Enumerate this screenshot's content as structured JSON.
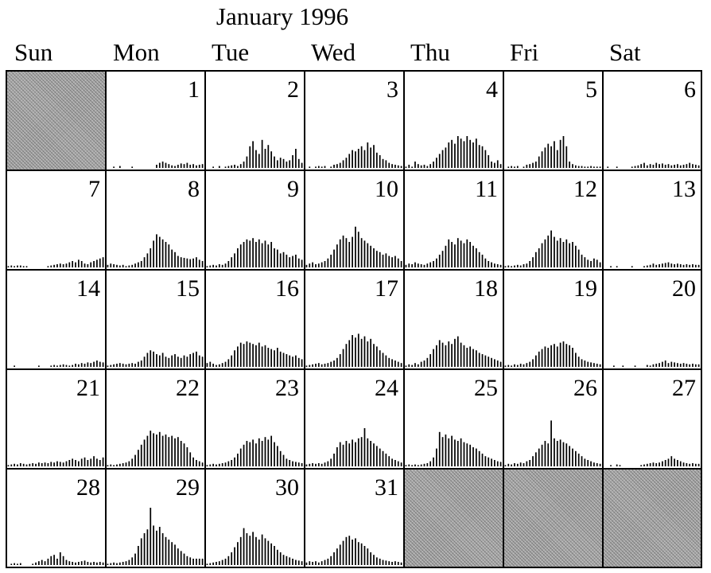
{
  "calendar": {
    "title": "January 1996",
    "weekdays": [
      "Sun",
      "Mon",
      "Tue",
      "Wed",
      "Thu",
      "Fri",
      "Sat"
    ]
  },
  "chart_data": {
    "type": "bar",
    "title": "January 1996",
    "layout": "monthly calendar, one small bar histogram per day",
    "grid": true,
    "columns": [
      "Sun",
      "Mon",
      "Tue",
      "Wed",
      "Thu",
      "Fri",
      "Sat"
    ],
    "bar_color": "#000000",
    "empty_cell_color": "#a8a8a8",
    "ylim": [
      0,
      1
    ],
    "note_values": "relative bar heights (fraction of panel height), approximate",
    "days": [
      {
        "day": 1,
        "values": [
          0,
          0,
          0.02,
          0,
          0.03,
          0,
          0,
          0,
          0.02,
          0,
          0,
          0,
          0,
          0,
          0,
          0,
          0.05,
          0.08,
          0.1,
          0.08,
          0.06,
          0.04,
          0.03,
          0.05,
          0.07,
          0.06,
          0.08,
          0.05,
          0.06,
          0.04,
          0.05,
          0.06
        ]
      },
      {
        "day": 2,
        "values": [
          0,
          0,
          0.02,
          0,
          0.03,
          0,
          0.02,
          0.03,
          0.04,
          0.05,
          0.03,
          0.06,
          0.1,
          0.18,
          0.34,
          0.42,
          0.28,
          0.22,
          0.44,
          0.3,
          0.36,
          0.26,
          0.18,
          0.12,
          0.16,
          0.14,
          0.1,
          0.12,
          0.2,
          0.3,
          0.14,
          0.08
        ]
      },
      {
        "day": 3,
        "values": [
          0,
          0.02,
          0,
          0.02,
          0.03,
          0.02,
          0.03,
          0,
          0.02,
          0.05,
          0.06,
          0.08,
          0.12,
          0.16,
          0.22,
          0.28,
          0.26,
          0.3,
          0.34,
          0.28,
          0.4,
          0.32,
          0.36,
          0.24,
          0.2,
          0.14,
          0.12,
          0.08,
          0.06,
          0.05,
          0.04,
          0.03
        ]
      },
      {
        "day": 4,
        "values": [
          0.02,
          0.05,
          0.02,
          0.1,
          0.06,
          0.04,
          0.05,
          0.03,
          0.06,
          0.1,
          0.16,
          0.22,
          0.28,
          0.32,
          0.4,
          0.44,
          0.38,
          0.5,
          0.46,
          0.42,
          0.5,
          0.44,
          0.4,
          0.46,
          0.36,
          0.34,
          0.28,
          0.2,
          0.1,
          0.08,
          0.12,
          0.06
        ]
      },
      {
        "day": 5,
        "values": [
          0,
          0.02,
          0.03,
          0.02,
          0.03,
          0,
          0.02,
          0.05,
          0.06,
          0.08,
          0.1,
          0.18,
          0.26,
          0.32,
          0.38,
          0.34,
          0.42,
          0.28,
          0.44,
          0.5,
          0.34,
          0.1,
          0.06,
          0.04,
          0.03,
          0.03,
          0.02,
          0.02,
          0.03,
          0.02,
          0.02,
          0.02
        ]
      },
      {
        "day": 6,
        "values": [
          0,
          0.02,
          0,
          0,
          0.02,
          0,
          0,
          0,
          0,
          0.02,
          0.03,
          0.04,
          0.06,
          0.08,
          0.04,
          0.06,
          0.05,
          0.08,
          0.06,
          0.07,
          0.05,
          0.06,
          0.04,
          0.05,
          0.06,
          0.04,
          0.05,
          0.06,
          0.08,
          0.06,
          0.05,
          0.04
        ]
      },
      {
        "day": 7,
        "values": [
          0.02,
          0.03,
          0.02,
          0.03,
          0.03,
          0.02,
          0.02,
          0,
          0,
          0,
          0,
          0,
          0,
          0.02,
          0.03,
          0.04,
          0.05,
          0.06,
          0.05,
          0.06,
          0.08,
          0.1,
          0.08,
          0.12,
          0.1,
          0.06,
          0.05,
          0.08,
          0.1,
          0.12,
          0.14,
          0.16
        ]
      },
      {
        "day": 8,
        "values": [
          0.04,
          0.06,
          0.05,
          0.04,
          0.03,
          0.04,
          0.02,
          0.03,
          0.04,
          0.06,
          0.08,
          0.1,
          0.16,
          0.22,
          0.3,
          0.42,
          0.52,
          0.48,
          0.44,
          0.4,
          0.36,
          0.28,
          0.24,
          0.18,
          0.16,
          0.15,
          0.14,
          0.13,
          0.14,
          0.16,
          0.12,
          0.1
        ]
      },
      {
        "day": 9,
        "values": [
          0.02,
          0.03,
          0.04,
          0.03,
          0.05,
          0.04,
          0.06,
          0.1,
          0.16,
          0.22,
          0.3,
          0.36,
          0.4,
          0.44,
          0.42,
          0.46,
          0.4,
          0.44,
          0.38,
          0.42,
          0.36,
          0.4,
          0.3,
          0.28,
          0.22,
          0.24,
          0.2,
          0.16,
          0.18,
          0.2,
          0.14,
          0.12
        ]
      },
      {
        "day": 10,
        "values": [
          0.04,
          0.06,
          0.08,
          0.05,
          0.06,
          0.08,
          0.1,
          0.14,
          0.2,
          0.28,
          0.36,
          0.44,
          0.5,
          0.46,
          0.4,
          0.48,
          0.64,
          0.56,
          0.46,
          0.42,
          0.38,
          0.34,
          0.3,
          0.26,
          0.24,
          0.2,
          0.22,
          0.18,
          0.16,
          0.18,
          0.14,
          0.1
        ]
      },
      {
        "day": 11,
        "values": [
          0.04,
          0.06,
          0.05,
          0.08,
          0.06,
          0.05,
          0.04,
          0.06,
          0.08,
          0.1,
          0.14,
          0.2,
          0.26,
          0.34,
          0.44,
          0.4,
          0.36,
          0.46,
          0.42,
          0.38,
          0.44,
          0.4,
          0.34,
          0.3,
          0.24,
          0.2,
          0.14,
          0.1,
          0.08,
          0.06,
          0.05,
          0.04
        ]
      },
      {
        "day": 12,
        "values": [
          0.02,
          0.03,
          0.02,
          0.03,
          0.04,
          0.03,
          0.05,
          0.06,
          0.1,
          0.16,
          0.24,
          0.3,
          0.38,
          0.44,
          0.5,
          0.58,
          0.48,
          0.42,
          0.46,
          0.4,
          0.44,
          0.38,
          0.4,
          0.34,
          0.28,
          0.2,
          0.16,
          0.12,
          0.1,
          0.14,
          0.12,
          0.08
        ]
      },
      {
        "day": 13,
        "values": [
          0,
          0,
          0.02,
          0,
          0.02,
          0,
          0,
          0,
          0,
          0.02,
          0,
          0,
          0,
          0.02,
          0.03,
          0.04,
          0.06,
          0.04,
          0.05,
          0.06,
          0.07,
          0.08,
          0.06,
          0.05,
          0.06,
          0.05,
          0.04,
          0.05,
          0.04,
          0.05,
          0.04,
          0.04
        ]
      },
      {
        "day": 14,
        "values": [
          0,
          0,
          0.02,
          0,
          0,
          0,
          0,
          0,
          0,
          0,
          0.02,
          0,
          0,
          0,
          0.02,
          0.03,
          0.02,
          0.03,
          0.04,
          0.03,
          0.02,
          0.03,
          0.05,
          0.04,
          0.06,
          0.05,
          0.07,
          0.06,
          0.08,
          0.1,
          0.08,
          0.07
        ]
      },
      {
        "day": 15,
        "values": [
          0.02,
          0.03,
          0.04,
          0.05,
          0.06,
          0.05,
          0.04,
          0.05,
          0.06,
          0.05,
          0.08,
          0.1,
          0.16,
          0.22,
          0.26,
          0.24,
          0.2,
          0.18,
          0.22,
          0.16,
          0.14,
          0.18,
          0.2,
          0.16,
          0.14,
          0.18,
          0.16,
          0.2,
          0.22,
          0.24,
          0.18,
          0.16
        ]
      },
      {
        "day": 16,
        "values": [
          0.06,
          0.08,
          0.05,
          0.03,
          0.04,
          0.06,
          0.08,
          0.12,
          0.18,
          0.26,
          0.32,
          0.38,
          0.36,
          0.4,
          0.38,
          0.36,
          0.34,
          0.38,
          0.32,
          0.34,
          0.3,
          0.28,
          0.26,
          0.3,
          0.24,
          0.22,
          0.2,
          0.18,
          0.16,
          0.18,
          0.14,
          0.12
        ]
      },
      {
        "day": 17,
        "values": [
          0.02,
          0.03,
          0.04,
          0.05,
          0.06,
          0.04,
          0.05,
          0.06,
          0.08,
          0.1,
          0.14,
          0.2,
          0.28,
          0.36,
          0.42,
          0.5,
          0.46,
          0.52,
          0.44,
          0.48,
          0.4,
          0.44,
          0.36,
          0.32,
          0.26,
          0.22,
          0.18,
          0.14,
          0.12,
          0.1,
          0.08,
          0.06
        ]
      },
      {
        "day": 18,
        "values": [
          0.02,
          0.04,
          0.03,
          0.06,
          0.04,
          0.08,
          0.1,
          0.14,
          0.2,
          0.28,
          0.34,
          0.42,
          0.38,
          0.34,
          0.4,
          0.36,
          0.44,
          0.48,
          0.38,
          0.34,
          0.3,
          0.32,
          0.28,
          0.26,
          0.22,
          0.2,
          0.18,
          0.16,
          0.14,
          0.12,
          0.1,
          0.08
        ]
      },
      {
        "day": 19,
        "values": [
          0.02,
          0.03,
          0.02,
          0.04,
          0.03,
          0.05,
          0.04,
          0.06,
          0.08,
          0.12,
          0.18,
          0.24,
          0.28,
          0.32,
          0.3,
          0.34,
          0.36,
          0.32,
          0.38,
          0.4,
          0.36,
          0.34,
          0.3,
          0.22,
          0.16,
          0.12,
          0.1,
          0.08,
          0.07,
          0.06,
          0.05,
          0.04
        ]
      },
      {
        "day": 20,
        "values": [
          0,
          0,
          0,
          0.02,
          0,
          0,
          0.02,
          0,
          0,
          0,
          0.02,
          0,
          0,
          0,
          0.03,
          0.02,
          0.04,
          0.05,
          0.06,
          0.08,
          0.1,
          0.06,
          0.08,
          0.07,
          0.06,
          0.05,
          0.06,
          0.05,
          0.04,
          0.05,
          0.04,
          0.04
        ]
      },
      {
        "day": 21,
        "values": [
          0.02,
          0.03,
          0.04,
          0.03,
          0.05,
          0.04,
          0.03,
          0.04,
          0.05,
          0.04,
          0.06,
          0.05,
          0.06,
          0.05,
          0.07,
          0.06,
          0.08,
          0.07,
          0.06,
          0.08,
          0.1,
          0.12,
          0.1,
          0.08,
          0.12,
          0.14,
          0.1,
          0.12,
          0.16,
          0.12,
          0.1,
          0.14
        ]
      },
      {
        "day": 22,
        "values": [
          0.02,
          0.03,
          0.02,
          0.03,
          0.04,
          0.05,
          0.06,
          0.08,
          0.12,
          0.18,
          0.26,
          0.34,
          0.42,
          0.48,
          0.56,
          0.52,
          0.5,
          0.54,
          0.48,
          0.5,
          0.46,
          0.48,
          0.44,
          0.46,
          0.4,
          0.36,
          0.3,
          0.22,
          0.14,
          0.1,
          0.08,
          0.06
        ]
      },
      {
        "day": 23,
        "values": [
          0.02,
          0.03,
          0.04,
          0.03,
          0.04,
          0.05,
          0.06,
          0.08,
          0.1,
          0.14,
          0.2,
          0.28,
          0.34,
          0.4,
          0.38,
          0.42,
          0.36,
          0.44,
          0.4,
          0.46,
          0.42,
          0.48,
          0.38,
          0.32,
          0.24,
          0.18,
          0.12,
          0.1,
          0.08,
          0.07,
          0.06,
          0.05
        ]
      },
      {
        "day": 24,
        "values": [
          0.03,
          0.04,
          0.05,
          0.04,
          0.05,
          0.04,
          0.06,
          0.08,
          0.12,
          0.2,
          0.3,
          0.38,
          0.34,
          0.4,
          0.36,
          0.42,
          0.38,
          0.44,
          0.46,
          0.6,
          0.44,
          0.4,
          0.36,
          0.32,
          0.28,
          0.24,
          0.2,
          0.16,
          0.12,
          0.1,
          0.08,
          0.06
        ]
      },
      {
        "day": 25,
        "values": [
          0.02,
          0.03,
          0.02,
          0.03,
          0.02,
          0.03,
          0.04,
          0.05,
          0.08,
          0.14,
          0.28,
          0.54,
          0.46,
          0.5,
          0.44,
          0.48,
          0.42,
          0.4,
          0.44,
          0.38,
          0.36,
          0.34,
          0.3,
          0.28,
          0.24,
          0.2,
          0.16,
          0.14,
          0.12,
          0.1,
          0.08,
          0.07
        ]
      },
      {
        "day": 26,
        "values": [
          0.02,
          0.04,
          0.03,
          0.05,
          0.04,
          0.06,
          0.05,
          0.08,
          0.1,
          0.16,
          0.22,
          0.28,
          0.34,
          0.4,
          0.36,
          0.72,
          0.44,
          0.4,
          0.42,
          0.38,
          0.36,
          0.32,
          0.28,
          0.24,
          0.2,
          0.16,
          0.12,
          0.1,
          0.08,
          0.06,
          0.05,
          0.04
        ]
      },
      {
        "day": 27,
        "values": [
          0,
          0,
          0.02,
          0,
          0.03,
          0.02,
          0,
          0,
          0,
          0,
          0,
          0,
          0.02,
          0.03,
          0.04,
          0.05,
          0.06,
          0.05,
          0.06,
          0.08,
          0.1,
          0.12,
          0.16,
          0.12,
          0.1,
          0.08,
          0.06,
          0.05,
          0.04,
          0.05,
          0.04,
          0.04
        ]
      },
      {
        "day": 28,
        "values": [
          0,
          0.02,
          0.03,
          0.02,
          0.03,
          0,
          0,
          0,
          0.02,
          0.04,
          0.06,
          0.08,
          0.06,
          0.1,
          0.14,
          0.16,
          0.1,
          0.2,
          0.14,
          0.08,
          0.06,
          0.05,
          0.04,
          0.05,
          0.06,
          0.07,
          0.05,
          0.04,
          0.05,
          0.04,
          0.05,
          0.04
        ]
      },
      {
        "day": 29,
        "values": [
          0.02,
          0.03,
          0.04,
          0.03,
          0.04,
          0.05,
          0.06,
          0.08,
          0.12,
          0.18,
          0.3,
          0.42,
          0.5,
          0.56,
          0.9,
          0.62,
          0.54,
          0.6,
          0.5,
          0.44,
          0.4,
          0.36,
          0.32,
          0.26,
          0.22,
          0.18,
          0.14,
          0.12,
          0.1,
          0.1,
          0.1,
          0.1
        ]
      },
      {
        "day": 30,
        "values": [
          0.02,
          0.03,
          0.04,
          0.05,
          0.06,
          0.08,
          0.1,
          0.14,
          0.2,
          0.28,
          0.36,
          0.44,
          0.58,
          0.5,
          0.46,
          0.52,
          0.44,
          0.4,
          0.48,
          0.42,
          0.38,
          0.34,
          0.3,
          0.24,
          0.2,
          0.16,
          0.14,
          0.12,
          0.1,
          0.08,
          0.07,
          0.06
        ]
      },
      {
        "day": 31,
        "values": [
          0.04,
          0.06,
          0.05,
          0.06,
          0.04,
          0.06,
          0.08,
          0.1,
          0.14,
          0.2,
          0.26,
          0.32,
          0.38,
          0.44,
          0.46,
          0.4,
          0.42,
          0.36,
          0.34,
          0.3,
          0.26,
          0.2,
          0.16,
          0.12,
          0.1,
          0.08,
          0.07,
          0.06,
          0.05,
          0.06,
          0.05,
          0.04
        ]
      }
    ]
  }
}
